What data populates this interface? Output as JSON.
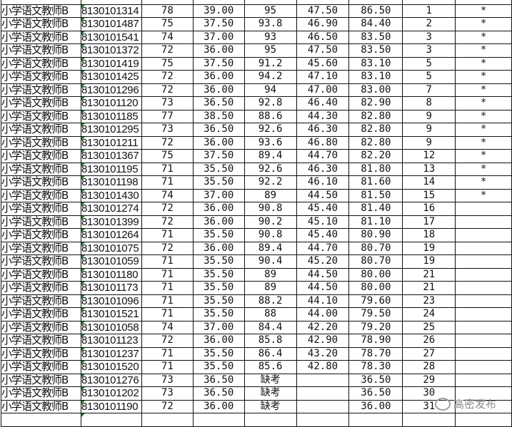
{
  "category": "小学语文教师B",
  "rows": [
    [
      "小学语文教师B",
      "8130101314",
      "78",
      "39.00",
      "95",
      "47.50",
      "86.50",
      "1",
      "*"
    ],
    [
      "小学语文教师B",
      "8130101487",
      "75",
      "37.50",
      "93.8",
      "46.90",
      "84.40",
      "2",
      "*"
    ],
    [
      "小学语文教师B",
      "8130101541",
      "74",
      "37.00",
      "93",
      "46.50",
      "83.50",
      "3",
      "*"
    ],
    [
      "小学语文教师B",
      "8130101372",
      "72",
      "36.00",
      "95",
      "47.50",
      "83.50",
      "3",
      "*"
    ],
    [
      "小学语文教师B",
      "8130101419",
      "75",
      "37.50",
      "91.2",
      "45.60",
      "83.10",
      "5",
      "*"
    ],
    [
      "小学语文教师B",
      "8130101425",
      "72",
      "36.00",
      "94.2",
      "47.10",
      "83.10",
      "5",
      "*"
    ],
    [
      "小学语文教师B",
      "8130101296",
      "72",
      "36.00",
      "94",
      "47.00",
      "83.00",
      "7",
      "*"
    ],
    [
      "小学语文教师B",
      "8130101120",
      "73",
      "36.50",
      "92.8",
      "46.40",
      "82.90",
      "8",
      "*"
    ],
    [
      "小学语文教师B",
      "8130101185",
      "77",
      "38.50",
      "88.6",
      "44.30",
      "82.80",
      "9",
      "*"
    ],
    [
      "小学语文教师B",
      "8130101295",
      "73",
      "36.50",
      "92.6",
      "46.30",
      "82.80",
      "9",
      "*"
    ],
    [
      "小学语文教师B",
      "8130101211",
      "72",
      "36.00",
      "93.6",
      "46.80",
      "82.80",
      "9",
      "*"
    ],
    [
      "小学语文教师B",
      "8130101367",
      "75",
      "37.50",
      "89.4",
      "44.70",
      "82.20",
      "12",
      "*"
    ],
    [
      "小学语文教师B",
      "8130101195",
      "71",
      "35.50",
      "92.6",
      "46.30",
      "81.80",
      "13",
      "*"
    ],
    [
      "小学语文教师B",
      "8130101198",
      "71",
      "35.50",
      "92.2",
      "46.10",
      "81.60",
      "14",
      "*"
    ],
    [
      "小学语文教师B",
      "8130101430",
      "74",
      "37.00",
      "89",
      "44.50",
      "81.50",
      "15",
      "*"
    ],
    [
      "小学语文教师B",
      "8130101274",
      "72",
      "36.00",
      "90.8",
      "45.40",
      "81.40",
      "16",
      ""
    ],
    [
      "小学语文教师B",
      "8130101399",
      "72",
      "36.00",
      "90.2",
      "45.10",
      "81.10",
      "17",
      ""
    ],
    [
      "小学语文教师B",
      "8130101264",
      "71",
      "35.50",
      "90.8",
      "45.40",
      "80.90",
      "18",
      ""
    ],
    [
      "小学语文教师B",
      "8130101075",
      "72",
      "36.00",
      "89.4",
      "44.70",
      "80.70",
      "19",
      ""
    ],
    [
      "小学语文教师B",
      "8130101059",
      "71",
      "35.50",
      "90.4",
      "45.20",
      "80.70",
      "19",
      ""
    ],
    [
      "小学语文教师B",
      "8130101180",
      "71",
      "35.50",
      "89",
      "44.50",
      "80.00",
      "21",
      ""
    ],
    [
      "小学语文教师B",
      "8130101173",
      "71",
      "35.50",
      "89",
      "44.50",
      "80.00",
      "21",
      ""
    ],
    [
      "小学语文教师B",
      "8130101096",
      "71",
      "35.50",
      "88.2",
      "44.10",
      "79.60",
      "23",
      ""
    ],
    [
      "小学语文教师B",
      "8130101521",
      "71",
      "35.50",
      "88",
      "44.00",
      "79.50",
      "24",
      ""
    ],
    [
      "小学语文教师B",
      "8130101058",
      "74",
      "37.00",
      "84.4",
      "42.20",
      "79.20",
      "25",
      ""
    ],
    [
      "小学语文教师B",
      "8130101123",
      "72",
      "36.00",
      "85.8",
      "42.90",
      "78.90",
      "26",
      ""
    ],
    [
      "小学语文教师B",
      "8130101237",
      "71",
      "35.50",
      "86.4",
      "43.20",
      "78.70",
      "27",
      ""
    ],
    [
      "小学语文教师B",
      "8130101520",
      "71",
      "35.50",
      "85.6",
      "42.80",
      "78.30",
      "28",
      ""
    ],
    [
      "小学语文教师B",
      "8130101276",
      "73",
      "36.50",
      "缺考",
      "",
      "36.50",
      "29",
      ""
    ],
    [
      "小学语文教师B",
      "8130101202",
      "73",
      "36.50",
      "缺考",
      "",
      "36.50",
      "30",
      ""
    ],
    [
      "小学语文教师B",
      "8130101190",
      "72",
      "36.00",
      "缺考",
      "",
      "36.00",
      "31",
      ""
    ]
  ],
  "watermark": "高密发布"
}
